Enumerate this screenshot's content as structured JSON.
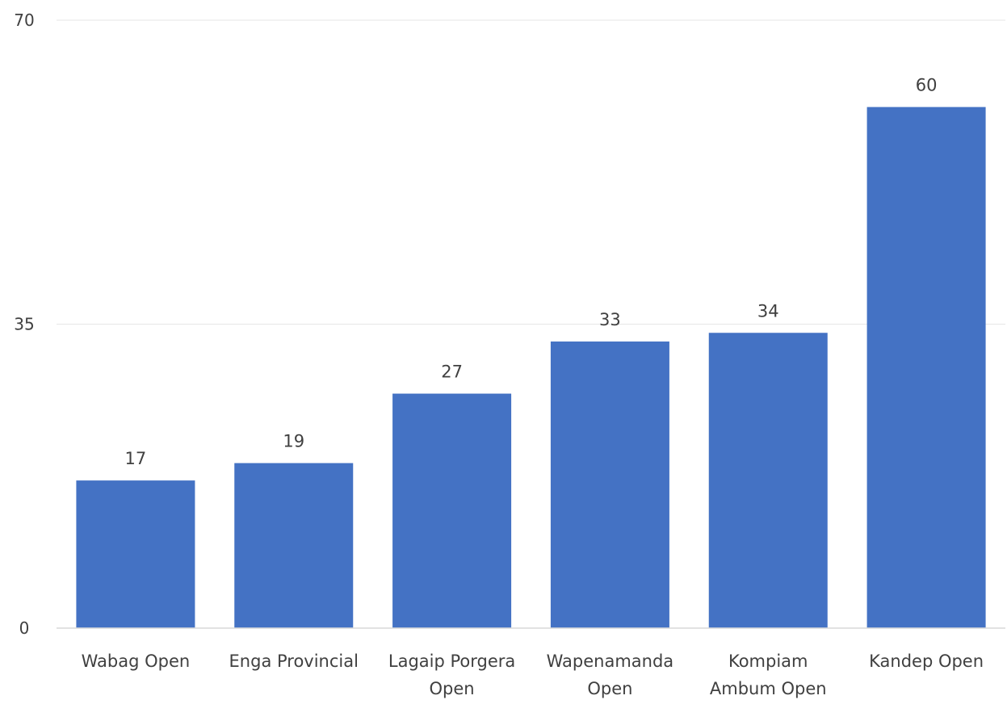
{
  "chart_data": {
    "type": "bar",
    "title": "",
    "xlabel": "",
    "ylabel": "",
    "categories": [
      "Wabag Open",
      "Enga Provincial",
      "Lagaip Porgera Open",
      "Wapenamanda Open",
      "Kompiam Ambum Open",
      "Kandep Open"
    ],
    "category_lines": [
      [
        "Wabag Open"
      ],
      [
        "Enga Provincial"
      ],
      [
        "Lagaip Porgera",
        "Open"
      ],
      [
        "Wapenamanda",
        "Open"
      ],
      [
        "Kompiam",
        "Ambum Open"
      ],
      [
        "Kandep Open"
      ]
    ],
    "values": [
      17,
      19,
      27,
      33,
      34,
      60
    ],
    "data_labels": [
      "17",
      "19",
      "27",
      "33",
      "34",
      "60"
    ],
    "ylim": [
      0,
      70
    ],
    "yticks": [
      0,
      35,
      70
    ],
    "ytick_labels": [
      "0",
      "35",
      "70"
    ],
    "grid": true,
    "legend": "none",
    "colors": {
      "bar": "#4472C4",
      "grid": "#E6E6E6",
      "axis": "#D9D9D9",
      "text": "#404040"
    }
  }
}
